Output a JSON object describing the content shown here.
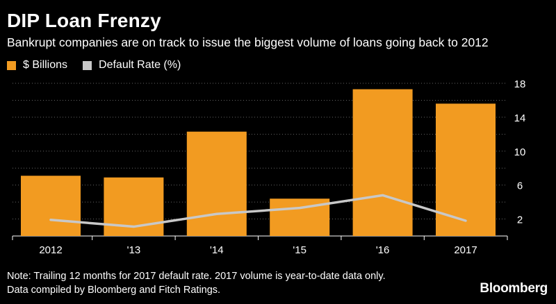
{
  "title": "DIP Loan Frenzy",
  "subtitle": "Bankrupt companies are on track to issue the biggest volume of loans going back to 2012",
  "legend": [
    {
      "label": "$ Billions",
      "color": "#f29b21"
    },
    {
      "label": "Default Rate (%)",
      "color": "#c8c8c8"
    }
  ],
  "note_line1": "Note: Trailing 12 months for 2017 default rate. 2017 volume is year-to-date data only.",
  "note_line2": "Data compiled by Bloomberg and Fitch Ratings.",
  "brand": "Bloomberg",
  "colors": {
    "bar": "#f29b21",
    "line": "#c8c8c8",
    "grid": "#666666",
    "background": "#000000"
  },
  "chart_data": {
    "type": "bar",
    "categories": [
      "2012",
      "'13",
      "'14",
      "'15",
      "'16",
      "2017"
    ],
    "series": [
      {
        "name": "$ Billions",
        "type": "bar",
        "values": [
          7.1,
          6.9,
          12.3,
          4.4,
          17.3,
          15.6
        ]
      },
      {
        "name": "Default Rate (%)",
        "type": "line",
        "values": [
          1.9,
          1.1,
          2.6,
          3.3,
          4.8,
          1.8
        ]
      }
    ],
    "ylim": [
      0,
      18
    ],
    "yticks": [
      2,
      6,
      10,
      14,
      18
    ],
    "grid": true
  }
}
